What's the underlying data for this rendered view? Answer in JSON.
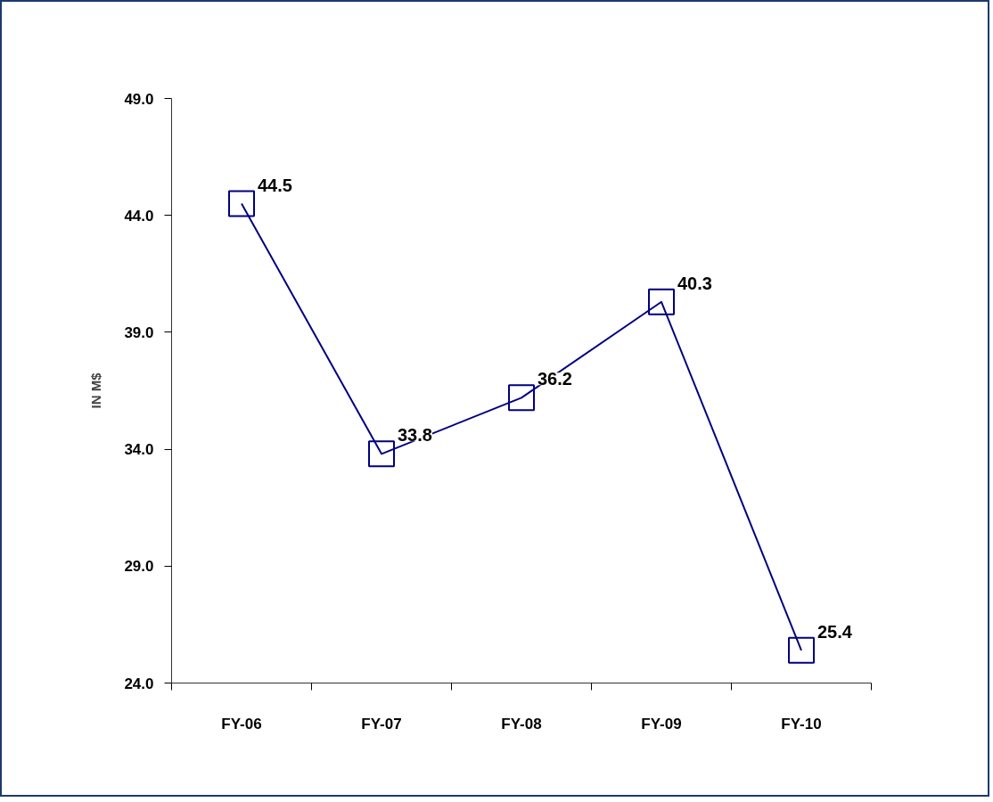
{
  "chart_data": {
    "type": "line",
    "ylabel": "IN M$",
    "categories": [
      "FY-06",
      "FY-07",
      "FY-08",
      "FY-09",
      "FY-10"
    ],
    "series": [
      {
        "color": "#000080",
        "values": [
          44.5,
          33.8,
          36.2,
          40.3,
          25.4
        ]
      }
    ],
    "ylim": [
      24,
      49
    ],
    "yticks": [
      {
        "value": 24,
        "label": "24.0"
      },
      {
        "value": 29,
        "label": "29.0"
      },
      {
        "value": 34,
        "label": "34.0"
      },
      {
        "value": 39,
        "label": "39.0"
      },
      {
        "value": 44,
        "label": "44.0"
      },
      {
        "value": 49,
        "label": "49.0"
      }
    ],
    "marker": "square",
    "data_labels": true
  }
}
